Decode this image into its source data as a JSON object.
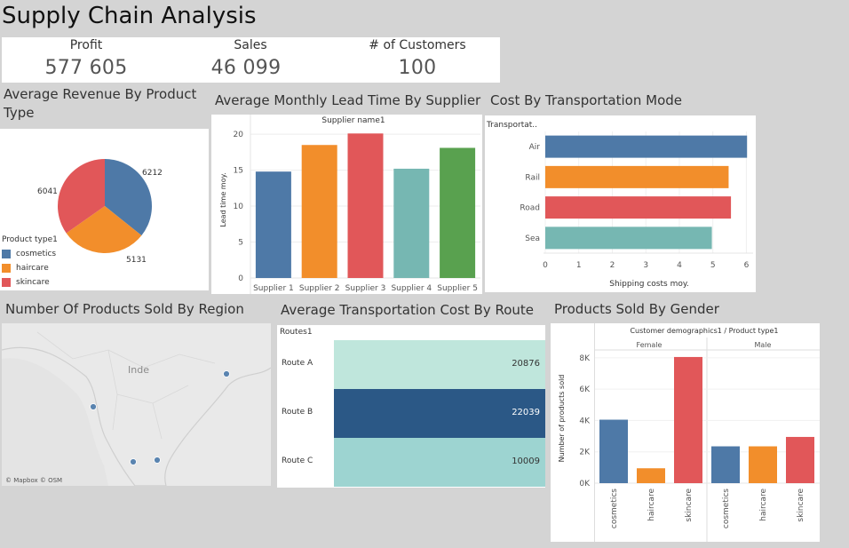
{
  "dashboard": {
    "title": "Supply Chain Analysis"
  },
  "kpis": [
    {
      "label": "Profit",
      "value": "577 605"
    },
    {
      "label": "Sales",
      "value": "46 099"
    },
    {
      "label": "# of Customers",
      "value": "100"
    }
  ],
  "colors": {
    "blue": "#4e79a7",
    "orange": "#f28e2b",
    "red": "#e15759",
    "teal": "#76b7b2",
    "green": "#59a14f",
    "dark_blue": "#2b5886",
    "mint": "#bfe6dc",
    "light_teal": "#9dd4d1"
  },
  "panels": {
    "pie": {
      "title": "Average Revenue By Product Type"
    },
    "lead": {
      "title": "Average Monthly Lead Time By Supplier"
    },
    "transport": {
      "title": "Cost By Transportation Mode"
    },
    "region": {
      "title": "Number Of Products Sold By Region",
      "map_label": "Inde",
      "attribution": "© Mapbox  © OSM"
    },
    "route": {
      "title": "Average Transportation Cost By Route",
      "header": "Routes1"
    },
    "gender": {
      "title": "Products Sold By Gender"
    }
  },
  "chart_data": [
    {
      "type": "pie",
      "legend_title": "Product type1",
      "legend_placement": "bottom-left",
      "slices": [
        {
          "name": "cosmetics",
          "value": 6212,
          "label": "6212"
        },
        {
          "name": "haircare",
          "value": 5131,
          "label": "5131"
        },
        {
          "name": "skincare",
          "value": 6041,
          "label": "6041"
        }
      ]
    },
    {
      "type": "bar",
      "title": "Supplier name1",
      "categories": [
        "Supplier 1",
        "Supplier 2",
        "Supplier 3",
        "Supplier 4",
        "Supplier 5"
      ],
      "values": [
        14.8,
        18.5,
        20.1,
        15.2,
        18.1
      ],
      "ylabel": "Lead time moy.",
      "ylim": [
        0,
        21
      ],
      "yticks": [
        "0",
        "5",
        "10",
        "15",
        "20"
      ]
    },
    {
      "type": "bar",
      "orientation": "horizontal",
      "axis_header": "Transportat..",
      "categories": [
        "Air",
        "Rail",
        "Road",
        "Sea"
      ],
      "values": [
        6.02,
        5.47,
        5.54,
        4.97
      ],
      "xlabel": "Shipping costs moy.",
      "xlim": [
        0,
        6.2
      ],
      "xticks": [
        "0",
        "1",
        "2",
        "3",
        "4",
        "5",
        "6"
      ]
    },
    {
      "type": "table",
      "header": "Routes1",
      "rows": [
        {
          "route": "Route A",
          "value": 20876,
          "label": "20876"
        },
        {
          "route": "Route B",
          "value": 22039,
          "label": "22039"
        },
        {
          "route": "Route C",
          "value": 10009,
          "label": "10009"
        }
      ]
    },
    {
      "type": "bar",
      "title": "Customer demographics1 / Product type1",
      "ylabel": "Number of products sold",
      "ylim": [
        0,
        8500
      ],
      "yticks": [
        "0K",
        "2K",
        "4K",
        "6K",
        "8K"
      ],
      "groups": [
        {
          "name": "Female",
          "categories": [
            "cosmetics",
            "haircare",
            "skincare"
          ],
          "values": [
            4050,
            950,
            8050
          ]
        },
        {
          "name": "Male",
          "categories": [
            "cosmetics",
            "haircare",
            "skincare"
          ],
          "values": [
            2350,
            2350,
            2950
          ]
        }
      ]
    }
  ]
}
